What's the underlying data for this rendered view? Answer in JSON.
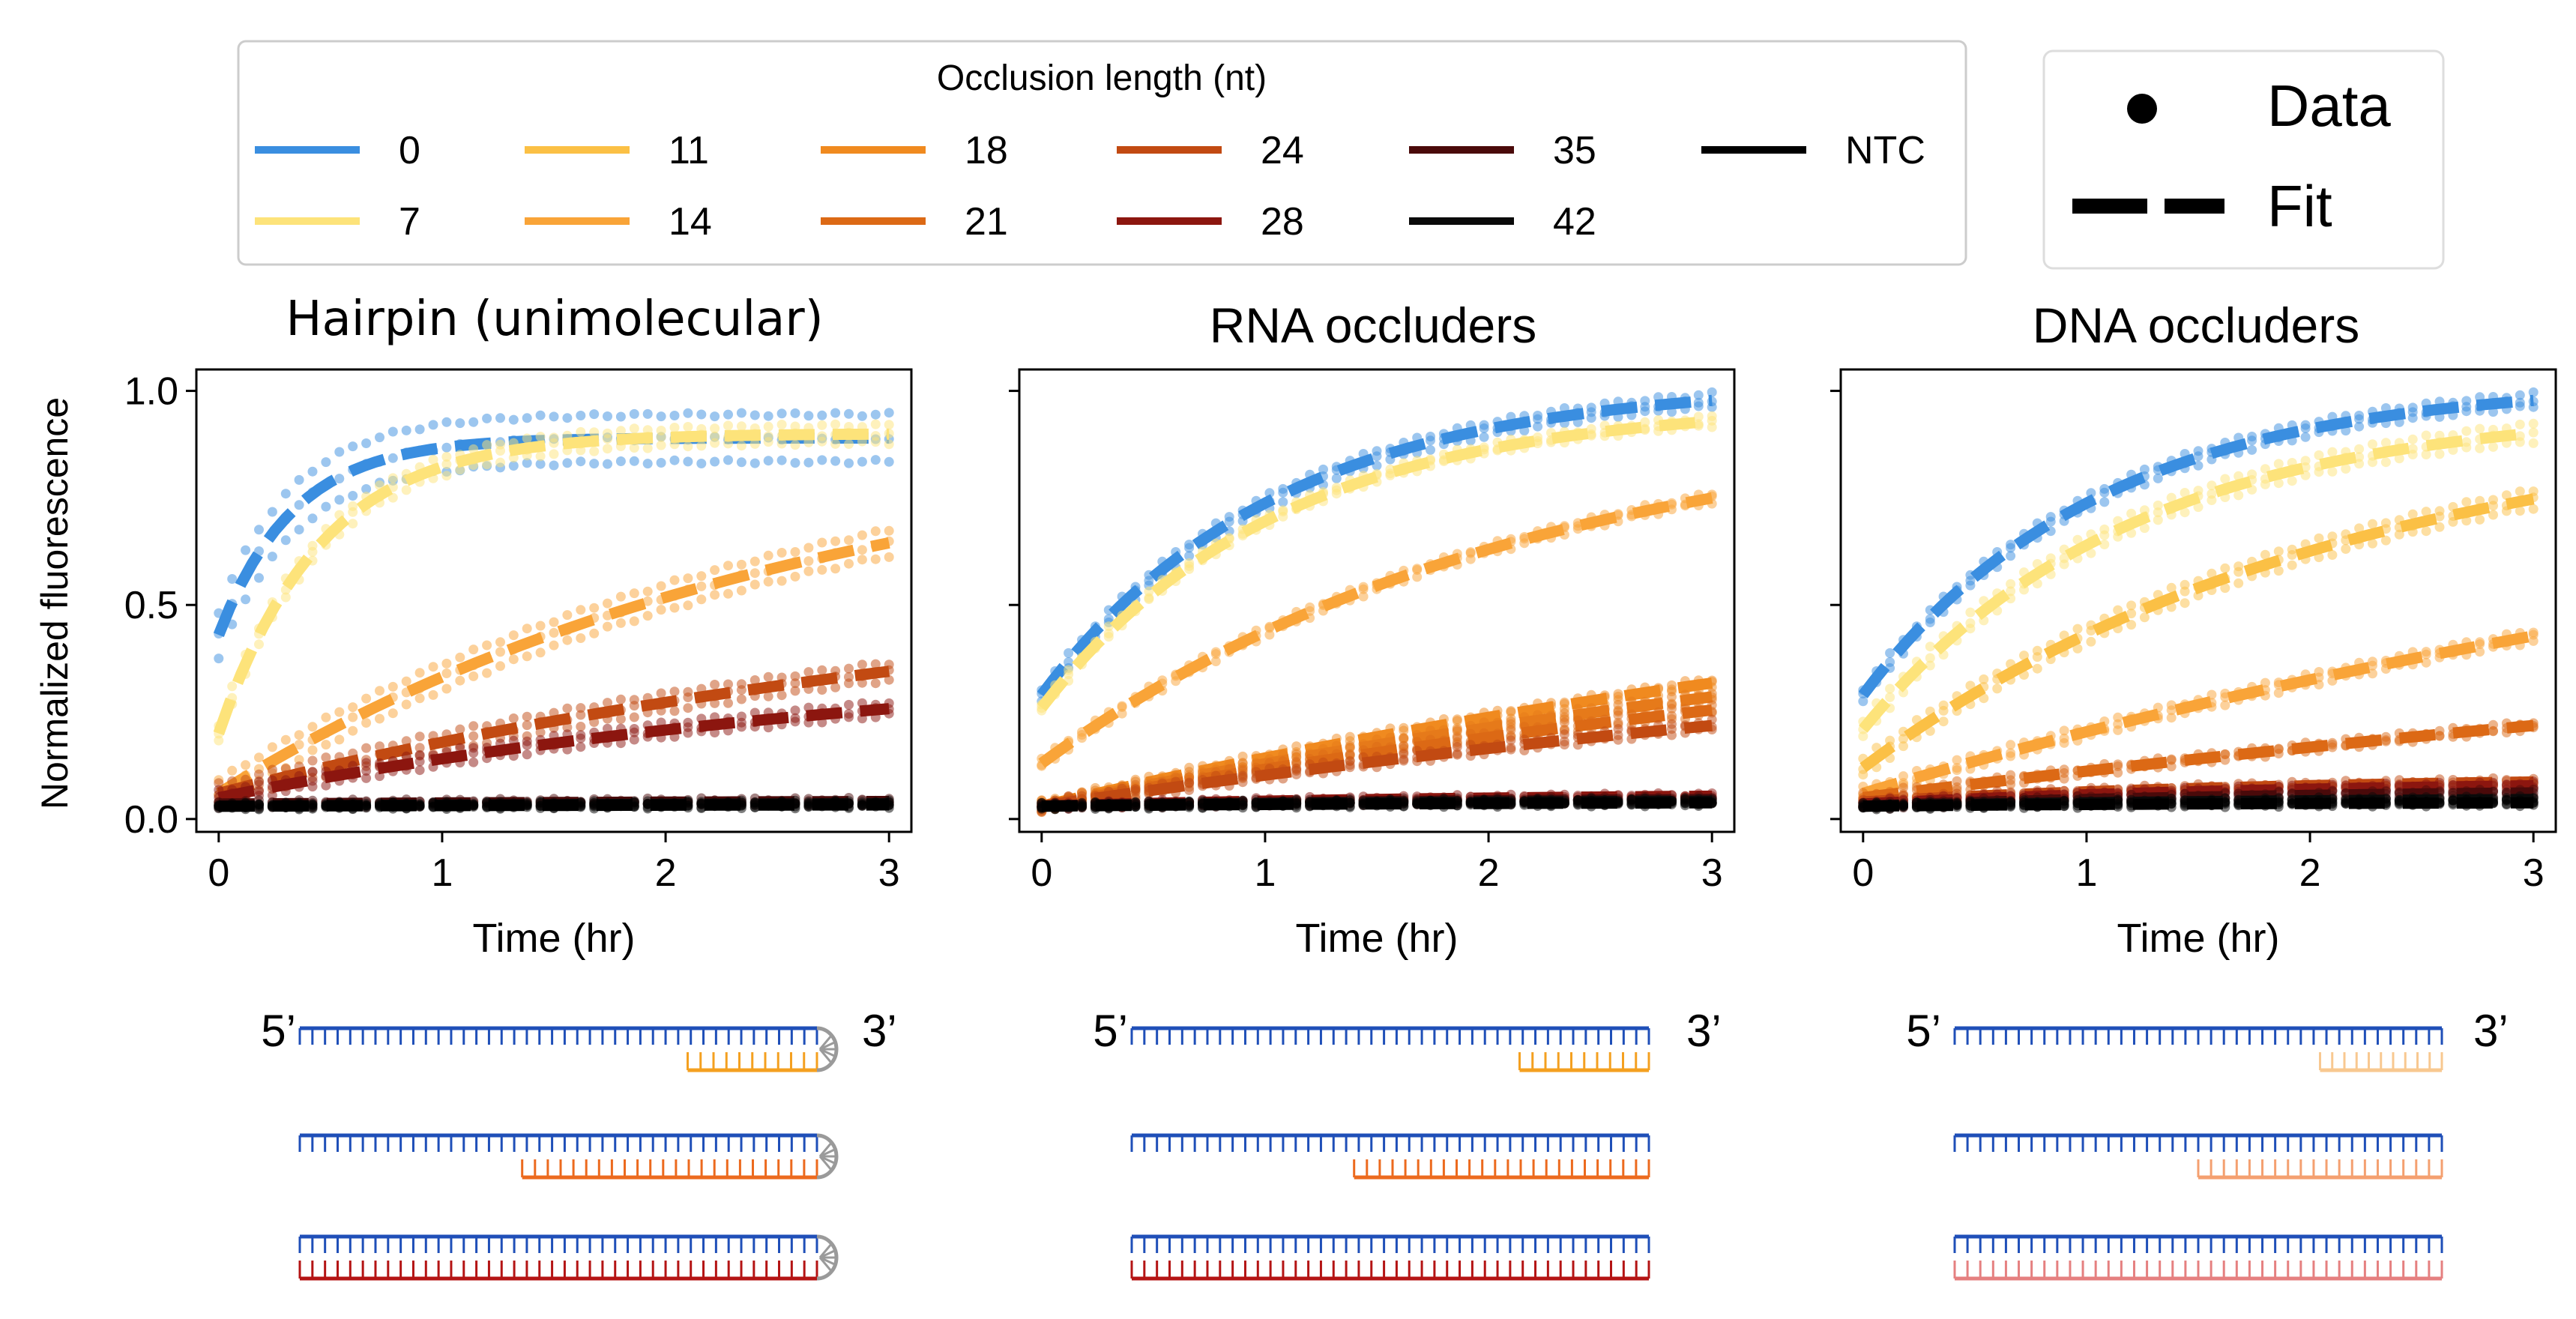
{
  "legend": {
    "title": "Occlusion length (nt)",
    "entries": [
      {
        "label": "0",
        "color": "#3a8ee0"
      },
      {
        "label": "7",
        "color": "#fde37a"
      },
      {
        "label": "11",
        "color": "#fbc045"
      },
      {
        "label": "14",
        "color": "#f9a438"
      },
      {
        "label": "18",
        "color": "#f08a1f"
      },
      {
        "label": "21",
        "color": "#dc6915"
      },
      {
        "label": "24",
        "color": "#c24a12"
      },
      {
        "label": "28",
        "color": "#8c160f"
      },
      {
        "label": "35",
        "color": "#4a0a0a"
      },
      {
        "label": "42",
        "color": "#0a0a0a"
      },
      {
        "label": "NTC",
        "color": "#000000"
      }
    ]
  },
  "style_legend": {
    "data_label": "Data",
    "fit_label": "Fit"
  },
  "strand_labels": {
    "five_prime": "5’",
    "three_prime": "3’"
  },
  "chart_data": [
    {
      "type": "line",
      "title": "Hairpin  (unimolecular)",
      "xlabel": "Time (hr)",
      "ylabel": "Normalized fluorescence",
      "xlim": [
        -0.1,
        3.1
      ],
      "ylim": [
        -0.03,
        1.05
      ],
      "xticks": [
        "0",
        "1",
        "2",
        "3"
      ],
      "yticks": [
        "0.0",
        "0.5",
        "1.0"
      ],
      "grid": false,
      "series": [
        {
          "name": "0",
          "color": "#3a8ee0",
          "fit_start": 0.43,
          "fit_plateau": 0.89,
          "fit_rate": 3.0,
          "spread": 0.055
        },
        {
          "name": "7",
          "color": "#fde37a",
          "fit_start": 0.2,
          "fit_plateau": 0.9,
          "fit_rate": 2.2,
          "spread": 0.02
        },
        {
          "name": "14",
          "color": "#f9a438",
          "fit_start": 0.06,
          "fit_plateau": 0.92,
          "fit_rate": 0.38,
          "spread": 0.03
        },
        {
          "name": "21",
          "color": "#c24a12",
          "fit_start": 0.06,
          "fit_plateau": 0.6,
          "fit_rate": 0.25,
          "spread": 0.02
        },
        {
          "name": "28",
          "color": "#8c160f",
          "fit_start": 0.05,
          "fit_plateau": 0.4,
          "fit_rate": 0.3,
          "spread": 0.015
        },
        {
          "name": "35",
          "color": "#4a0a0a",
          "fit_start": 0.035,
          "fit_plateau": 0.045,
          "fit_rate": 0.3,
          "spread": 0.005
        },
        {
          "name": "42",
          "color": "#0a0a0a",
          "fit_start": 0.03,
          "fit_plateau": 0.04,
          "fit_rate": 0.3,
          "spread": 0.004
        },
        {
          "name": "NTC",
          "color": "#000000",
          "fit_start": 0.03,
          "fit_plateau": 0.035,
          "fit_rate": 0.3,
          "spread": 0.004
        }
      ]
    },
    {
      "type": "line",
      "title": "RNA occluders",
      "xlabel": "Time (hr)",
      "xlim": [
        -0.1,
        3.1
      ],
      "ylim": [
        -0.03,
        1.05
      ],
      "xticks": [
        "0",
        "1",
        "2",
        "3"
      ],
      "grid": false,
      "series": [
        {
          "name": "0",
          "color": "#3a8ee0",
          "fit_start": 0.29,
          "fit_plateau": 1.02,
          "fit_rate": 0.95,
          "spread": 0.015
        },
        {
          "name": "7",
          "color": "#fde37a",
          "fit_start": 0.26,
          "fit_plateau": 0.97,
          "fit_rate": 0.95,
          "spread": 0.01
        },
        {
          "name": "11",
          "color": "#f9a438",
          "fit_start": 0.13,
          "fit_plateau": 0.95,
          "fit_rate": 0.47,
          "spread": 0.01
        },
        {
          "name": "14",
          "color": "#f08a1f",
          "fit_start": 0.03,
          "fit_plateau": 0.75,
          "fit_rate": 0.17,
          "spread": 0.01
        },
        {
          "name": "18",
          "color": "#e67a1a",
          "fit_start": 0.03,
          "fit_plateau": 0.7,
          "fit_rate": 0.16,
          "spread": 0.01
        },
        {
          "name": "21",
          "color": "#dc6915",
          "fit_start": 0.03,
          "fit_plateau": 0.65,
          "fit_rate": 0.15,
          "spread": 0.01
        },
        {
          "name": "24",
          "color": "#c24a12",
          "fit_start": 0.03,
          "fit_plateau": 0.55,
          "fit_rate": 0.15,
          "spread": 0.01
        },
        {
          "name": "28",
          "color": "#8c160f",
          "fit_start": 0.03,
          "fit_plateau": 0.06,
          "fit_rate": 0.5,
          "spread": 0.004
        },
        {
          "name": "35",
          "color": "#4a0a0a",
          "fit_start": 0.03,
          "fit_plateau": 0.05,
          "fit_rate": 0.5,
          "spread": 0.004
        },
        {
          "name": "42",
          "color": "#0a0a0a",
          "fit_start": 0.03,
          "fit_plateau": 0.045,
          "fit_rate": 0.5,
          "spread": 0.004
        },
        {
          "name": "NTC",
          "color": "#000000",
          "fit_start": 0.03,
          "fit_plateau": 0.04,
          "fit_rate": 0.5,
          "spread": 0.004
        }
      ]
    },
    {
      "type": "line",
      "title": "DNA occluders",
      "xlabel": "Time (hr)",
      "xlim": [
        -0.1,
        3.1
      ],
      "ylim": [
        -0.03,
        1.05
      ],
      "xticks": [
        "0",
        "1",
        "2",
        "3"
      ],
      "grid": false,
      "series": [
        {
          "name": "0",
          "color": "#3a8ee0",
          "fit_start": 0.29,
          "fit_plateau": 1.02,
          "fit_rate": 0.95,
          "spread": 0.015
        },
        {
          "name": "7",
          "color": "#fde37a",
          "fit_start": 0.21,
          "fit_plateau": 0.96,
          "fit_rate": 0.85,
          "spread": 0.02
        },
        {
          "name": "11",
          "color": "#fbc045",
          "fit_start": 0.12,
          "fit_plateau": 0.95,
          "fit_rate": 0.47,
          "spread": 0.02
        },
        {
          "name": "14",
          "color": "#f9a438",
          "fit_start": 0.06,
          "fit_plateau": 0.98,
          "fit_rate": 0.17,
          "spread": 0.012
        },
        {
          "name": "18",
          "color": "#dc6915",
          "fit_start": 0.05,
          "fit_plateau": 0.7,
          "fit_rate": 0.1,
          "spread": 0.008
        },
        {
          "name": "21",
          "color": "#c24a12",
          "fit_start": 0.04,
          "fit_plateau": 0.1,
          "fit_rate": 0.5,
          "spread": 0.006
        },
        {
          "name": "24",
          "color": "#8c160f",
          "fit_start": 0.035,
          "fit_plateau": 0.09,
          "fit_rate": 0.5,
          "spread": 0.006
        },
        {
          "name": "28",
          "color": "#4a0a0a",
          "fit_start": 0.03,
          "fit_plateau": 0.07,
          "fit_rate": 0.5,
          "spread": 0.005
        },
        {
          "name": "42",
          "color": "#0a0a0a",
          "fit_start": 0.03,
          "fit_plateau": 0.05,
          "fit_rate": 0.5,
          "spread": 0.004
        },
        {
          "name": "NTC",
          "color": "#000000",
          "fit_start": 0.03,
          "fit_plateau": 0.04,
          "fit_rate": 0.5,
          "spread": 0.004
        }
      ]
    }
  ],
  "schematics": [
    {
      "panel": "hairpin",
      "top_color": "#1f4fb8",
      "loop_color": "#9a9a9a",
      "rows": [
        {
          "bound_fraction": 0.25,
          "bottom_color": "#f4a020"
        },
        {
          "bound_fraction": 0.57,
          "bottom_color": "#ec6a1e"
        },
        {
          "bound_fraction": 1.0,
          "bottom_color": "#b41414"
        }
      ]
    },
    {
      "panel": "rna",
      "top_color": "#1f4fb8",
      "rows": [
        {
          "bound_fraction": 0.25,
          "bottom_color": "#f4a020"
        },
        {
          "bound_fraction": 0.57,
          "bottom_color": "#ec6a1e"
        },
        {
          "bound_fraction": 1.0,
          "bottom_color": "#b41414"
        }
      ]
    },
    {
      "panel": "dna",
      "top_color": "#1f4fb8",
      "rows": [
        {
          "bound_fraction": 0.25,
          "bottom_color": "#f8c890"
        },
        {
          "bound_fraction": 0.5,
          "bottom_color": "#f4a070"
        },
        {
          "bound_fraction": 1.0,
          "bottom_color": "#e58080"
        }
      ]
    }
  ]
}
